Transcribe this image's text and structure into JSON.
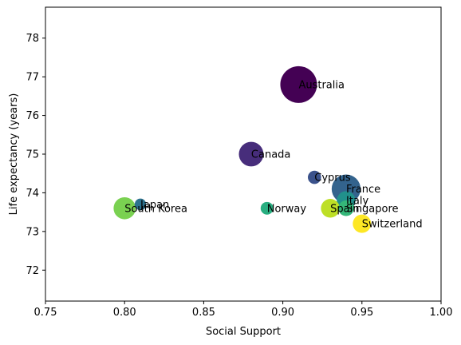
{
  "chart_data": {
    "type": "scatter",
    "title": "",
    "xlabel": "Social Support",
    "ylabel": "Life expectancy (years)",
    "xlim": [
      0.75,
      1.0
    ],
    "ylim": [
      71.2,
      78.8
    ],
    "xticks": [
      0.75,
      0.8,
      0.85,
      0.9,
      0.95,
      1.0
    ],
    "xtick_labels": [
      "0.75",
      "0.80",
      "0.85",
      "0.90",
      "0.95",
      "1.00"
    ],
    "yticks": [
      72,
      73,
      74,
      75,
      76,
      77,
      78
    ],
    "ytick_labels": [
      "72",
      "73",
      "74",
      "75",
      "76",
      "77",
      "78"
    ],
    "grid": false,
    "size_encodes": "unlabeled third variable (relative bubble area)",
    "color_encodes": "unlabeled fourth variable (viridis colormap)",
    "points": [
      {
        "label": "Australia",
        "x": 0.91,
        "y": 76.8,
        "size": 1.0,
        "color": "#440154"
      },
      {
        "label": "Canada",
        "x": 0.88,
        "y": 75.0,
        "size": 0.45,
        "color": "#472d7b"
      },
      {
        "label": "Cyprus",
        "x": 0.92,
        "y": 74.4,
        "size": 0.13,
        "color": "#3b528b"
      },
      {
        "label": "France",
        "x": 0.94,
        "y": 74.1,
        "size": 0.62,
        "color": "#33638d"
      },
      {
        "label": "Italy",
        "x": 0.94,
        "y": 73.8,
        "size": 0.26,
        "color": "#21918c"
      },
      {
        "label": "Japan",
        "x": 0.81,
        "y": 73.7,
        "size": 0.1,
        "color": "#2c728e"
      },
      {
        "label": "Norway",
        "x": 0.89,
        "y": 73.6,
        "size": 0.12,
        "color": "#28ae80"
      },
      {
        "label": "Singapore",
        "x": 0.94,
        "y": 73.6,
        "size": 0.18,
        "color": "#35b779"
      },
      {
        "label": "South Korea",
        "x": 0.8,
        "y": 73.6,
        "size": 0.36,
        "color": "#7ad151"
      },
      {
        "label": "Spain",
        "x": 0.93,
        "y": 73.6,
        "size": 0.26,
        "color": "#bddf26"
      },
      {
        "label": "Switzerland",
        "x": 0.95,
        "y": 73.2,
        "size": 0.25,
        "color": "#fde725"
      }
    ]
  }
}
